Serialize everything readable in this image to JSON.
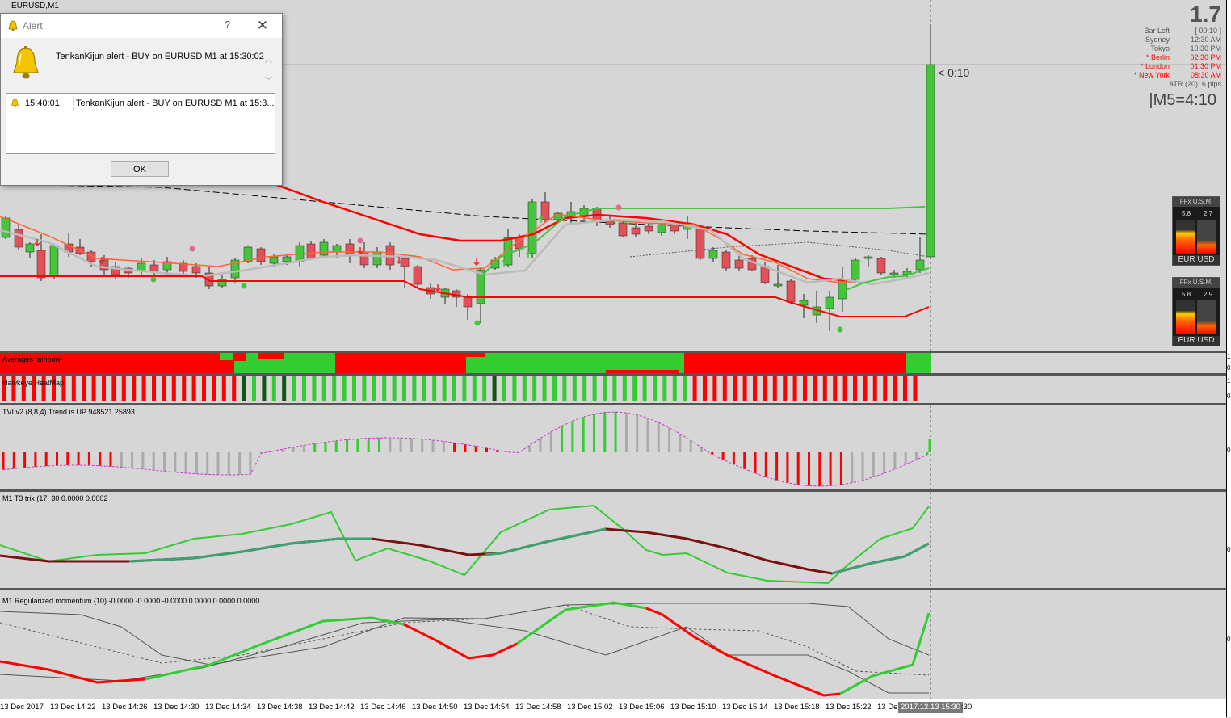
{
  "window": {
    "title": "EURUSD,M1"
  },
  "colors": {
    "bull": "#45c43c",
    "bear": "#e2505a",
    "red": "#ff0000",
    "green": "#33cc33",
    "magenta": "#cc33cc",
    "gray": "#a0a0a0"
  },
  "info": {
    "big_value": "1.7",
    "bar_left_label": "Bar Left",
    "bar_left_value": "[ 00:10 ]",
    "cities": [
      {
        "name": "Sydney",
        "time": "12:30 AM",
        "active": false
      },
      {
        "name": "Tokyo",
        "time": "10:30 PM",
        "active": false
      },
      {
        "name": "* Berlin",
        "time": "02:30 PM",
        "active": true
      },
      {
        "name": "* London",
        "time": "01:30 PM",
        "active": true
      },
      {
        "name": "* New York",
        "time": "08:30 AM",
        "active": true
      }
    ],
    "atr": "ATR (20): 6 pips",
    "m5": "|M5=4:10",
    "countdown": "< 0:10"
  },
  "usm": [
    {
      "header": "FFx U.S.M.",
      "v1": "5.8",
      "v2": "2.7",
      "footer": "EUR USD"
    },
    {
      "header": "FFx U.S.M.",
      "v1": "5.8",
      "v2": "2.9",
      "footer": "EUR USD"
    }
  ],
  "panes": {
    "rainbow": "Averages rainbow",
    "heatmap": "Hawkeye HeatMap",
    "tvi": "TVI v2 (8,8,4) Trend is UP 948521.25893",
    "trix": "M1 T3 trix (17, 30 0.0000 0.0002",
    "momentum": "M1 Regularized momentum (10) -0.0000 -0.0000 -0.0000 0.0000 0.0000 0.0000"
  },
  "xaxis": {
    "labels": [
      "13 Dec 2017",
      "13 Dec 14:22",
      "13 Dec 14:26",
      "13 Dec 14:30",
      "13 Dec 14:34",
      "13 Dec 14:38",
      "13 Dec 14:42",
      "13 Dec 14:46",
      "13 Dec 14:50",
      "13 Dec 14:54",
      "13 Dec 14:58",
      "13 Dec 15:02",
      "13 Dec 15:06",
      "13 Dec 15:10",
      "13 Dec 15:14",
      "13 Dec 15:18",
      "13 Dec 15:22",
      "13 De"
    ],
    "cursor_label": "2017.12.13 15:30",
    "tail": ":30"
  },
  "scale_ticks": [
    "1",
    "0",
    "1",
    "0",
    "0",
    "0",
    "0"
  ],
  "alert": {
    "title": "Alert",
    "help": "?",
    "message": "TenkanKijun alert - BUY on EURUSD M1 at 15:30:02",
    "history": [
      {
        "time": "15:40:01",
        "text": "TenkanKijun alert - BUY on EURUSD M1 at 15:3..."
      }
    ],
    "ok_label": "OK"
  }
}
